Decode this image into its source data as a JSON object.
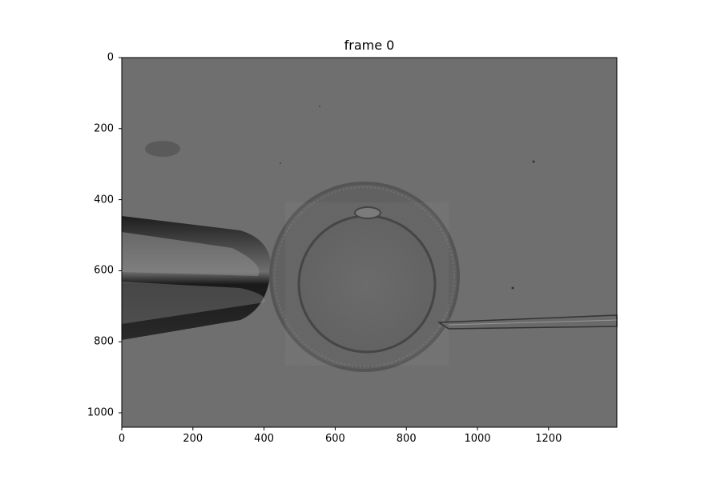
{
  "figure": {
    "title": "frame 0",
    "image_description_name": "micromanipulation-oocyte-frame",
    "x_axis": {
      "ticks": [
        "0",
        "200",
        "400",
        "600",
        "800",
        "1000",
        "1200"
      ]
    },
    "y_axis": {
      "ticks": [
        "0",
        "200",
        "400",
        "600",
        "800",
        "1000"
      ]
    },
    "image_extent": {
      "width": 1392,
      "height": 1040
    }
  },
  "colors": {
    "background_gray": "#6b6b6b",
    "axes_black": "#000000"
  }
}
